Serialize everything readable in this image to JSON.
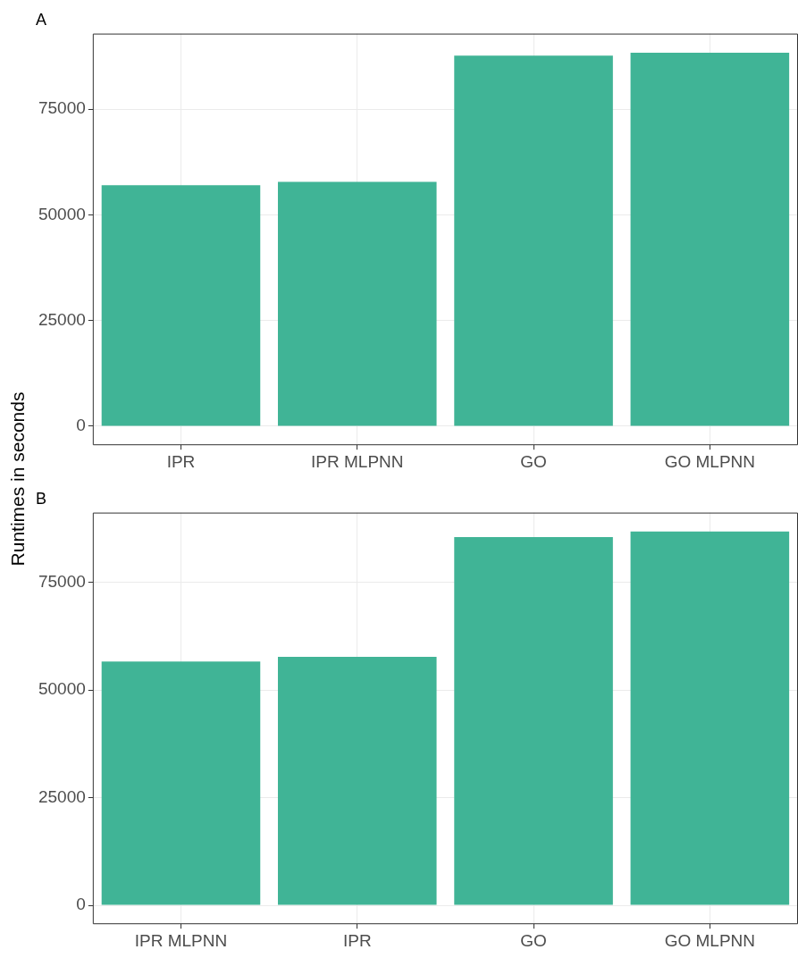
{
  "chart_data": [
    {
      "type": "bar",
      "title": "A",
      "ylabel": "Runtimes in seconds",
      "categories": [
        "IPR",
        "IPR MLPNN",
        "GO",
        "GO MLPNN"
      ],
      "values": [
        57000,
        57800,
        87700,
        88400
      ],
      "color": "#40b496",
      "ylim": [
        -4500,
        92900
      ],
      "yticks": [
        0,
        25000,
        50000,
        75000
      ],
      "grid": true
    },
    {
      "type": "bar",
      "title": "B",
      "categories": [
        "IPR MLPNN",
        "IPR",
        "GO",
        "GO MLPNN"
      ],
      "values": [
        56600,
        57700,
        85500,
        86800
      ],
      "color": "#40b496",
      "ylim": [
        -4400,
        91200
      ],
      "yticks": [
        0,
        25000,
        50000,
        75000
      ],
      "grid": true
    }
  ]
}
